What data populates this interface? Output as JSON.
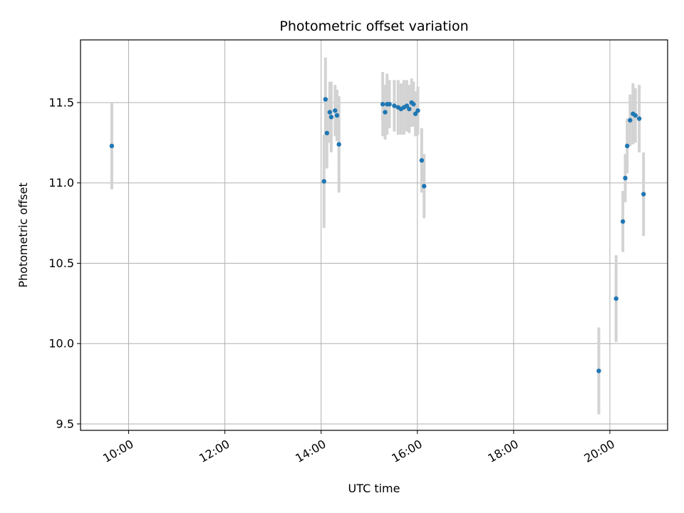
{
  "chart_data": {
    "type": "scatter",
    "title": "Photometric offset variation",
    "xlabel": "UTC time",
    "ylabel": "Photometric offset",
    "x_unit": "UTC hours",
    "xlim": [
      9.0,
      21.2
    ],
    "ylim": [
      9.46,
      11.89
    ],
    "grid": true,
    "legend": "none",
    "x_ticks": [
      {
        "value": 10,
        "label": "10:00"
      },
      {
        "value": 12,
        "label": "12:00"
      },
      {
        "value": 14,
        "label": "14:00"
      },
      {
        "value": 16,
        "label": "16:00"
      },
      {
        "value": 18,
        "label": "18:00"
      },
      {
        "value": 20,
        "label": "20:00"
      }
    ],
    "y_ticks": [
      {
        "value": 9.5,
        "label": "9.5"
      },
      {
        "value": 10.0,
        "label": "10.0"
      },
      {
        "value": 10.5,
        "label": "10.5"
      },
      {
        "value": 11.0,
        "label": "11.0"
      },
      {
        "value": 11.5,
        "label": "11.5"
      }
    ],
    "colors": {
      "points": "#1f77b4",
      "errorbars": "#d3d3d3",
      "grid": "#b0b0b0"
    },
    "points": [
      {
        "x": 9.65,
        "y": 11.23,
        "yerr": 0.27
      },
      {
        "x": 14.06,
        "y": 11.01,
        "yerr": 0.29
      },
      {
        "x": 14.09,
        "y": 11.52,
        "yerr": 0.26
      },
      {
        "x": 14.12,
        "y": 11.31,
        "yerr": 0.22
      },
      {
        "x": 14.18,
        "y": 11.44,
        "yerr": 0.19
      },
      {
        "x": 14.21,
        "y": 11.41,
        "yerr": 0.22
      },
      {
        "x": 14.29,
        "y": 11.45,
        "yerr": 0.16
      },
      {
        "x": 14.33,
        "y": 11.42,
        "yerr": 0.16
      },
      {
        "x": 14.37,
        "y": 11.24,
        "yerr": 0.3
      },
      {
        "x": 15.28,
        "y": 11.49,
        "yerr": 0.2
      },
      {
        "x": 15.33,
        "y": 11.44,
        "yerr": 0.17
      },
      {
        "x": 15.37,
        "y": 11.49,
        "yerr": 0.19
      },
      {
        "x": 15.42,
        "y": 11.49,
        "yerr": 0.15
      },
      {
        "x": 15.52,
        "y": 11.48,
        "yerr": 0.16
      },
      {
        "x": 15.6,
        "y": 11.47,
        "yerr": 0.17
      },
      {
        "x": 15.66,
        "y": 11.46,
        "yerr": 0.16
      },
      {
        "x": 15.72,
        "y": 11.47,
        "yerr": 0.17
      },
      {
        "x": 15.78,
        "y": 11.48,
        "yerr": 0.16
      },
      {
        "x": 15.83,
        "y": 11.46,
        "yerr": 0.15
      },
      {
        "x": 15.88,
        "y": 11.5,
        "yerr": 0.15
      },
      {
        "x": 15.92,
        "y": 11.49,
        "yerr": 0.14
      },
      {
        "x": 15.96,
        "y": 11.43,
        "yerr": 0.14
      },
      {
        "x": 16.01,
        "y": 11.45,
        "yerr": 0.15
      },
      {
        "x": 16.09,
        "y": 11.14,
        "yerr": 0.2
      },
      {
        "x": 16.14,
        "y": 10.98,
        "yerr": 0.2
      },
      {
        "x": 19.77,
        "y": 9.83,
        "yerr": 0.27
      },
      {
        "x": 20.13,
        "y": 10.28,
        "yerr": 0.27
      },
      {
        "x": 20.27,
        "y": 10.76,
        "yerr": 0.19
      },
      {
        "x": 20.32,
        "y": 11.03,
        "yerr": 0.15
      },
      {
        "x": 20.36,
        "y": 11.23,
        "yerr": 0.17
      },
      {
        "x": 20.42,
        "y": 11.39,
        "yerr": 0.16
      },
      {
        "x": 20.48,
        "y": 11.43,
        "yerr": 0.19
      },
      {
        "x": 20.53,
        "y": 11.42,
        "yerr": 0.17
      },
      {
        "x": 20.61,
        "y": 11.4,
        "yerr": 0.21
      },
      {
        "x": 20.7,
        "y": 10.93,
        "yerr": 0.26
      }
    ]
  }
}
